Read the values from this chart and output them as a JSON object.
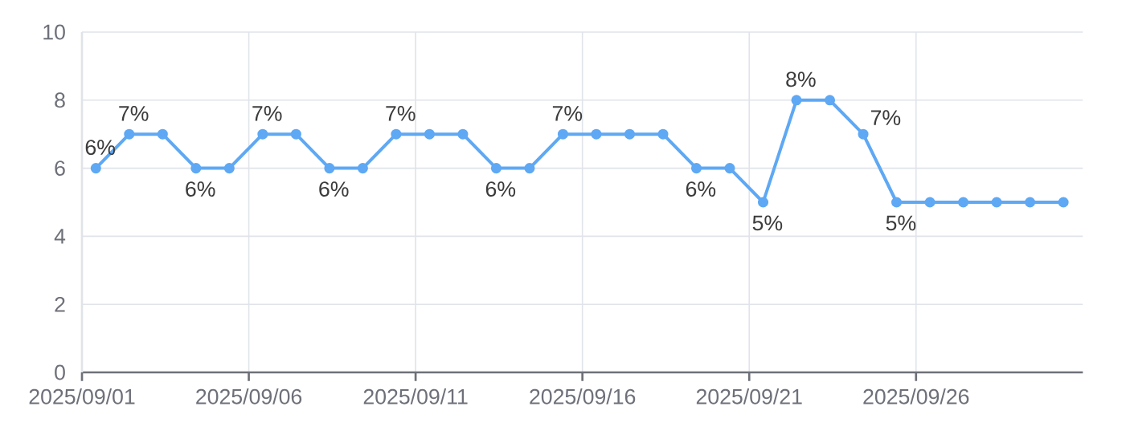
{
  "chart_data": {
    "type": "line",
    "x": [
      "2025-09-01T10:00",
      "2025-09-02T10:00",
      "2025-09-03T10:00",
      "2025-09-04T10:00",
      "2025-09-05T10:00",
      "2025-09-06T10:00",
      "2025-09-07T10:00",
      "2025-09-08T10:00",
      "2025-09-09T10:00",
      "2025-09-10T10:00",
      "2025-09-11T10:00",
      "2025-09-12T10:00",
      "2025-09-13T10:00",
      "2025-09-14T10:00",
      "2025-09-15T10:00",
      "2025-09-16T10:00",
      "2025-09-17T10:00",
      "2025-09-18T10:00",
      "2025-09-19T10:00",
      "2025-09-20T10:00",
      "2025-09-21T10:00",
      "2025-09-22T10:00",
      "2025-09-23T10:00",
      "2025-09-24T10:00",
      "2025-09-25T10:00",
      "2025-09-26T10:00",
      "2025-09-27T10:00",
      "2025-09-28T10:00",
      "2025-09-29T10:00",
      "2025-09-30T10:00"
    ],
    "series": [
      {
        "color": "#5ea8f4",
        "values": [
          6,
          7,
          7,
          6,
          6,
          7,
          7,
          6,
          6,
          7,
          7,
          7,
          6,
          6,
          7,
          7,
          7,
          7,
          6,
          6,
          5,
          8,
          8,
          7,
          5,
          5,
          5,
          5,
          5,
          5
        ],
        "value_labels": [
          "6%",
          "7%",
          null,
          "6%",
          null,
          "7%",
          null,
          "6%",
          null,
          "7%",
          null,
          null,
          "6%",
          null,
          "7%",
          null,
          null,
          null,
          "6%",
          null,
          "5%",
          "8%",
          null,
          "7%",
          "5%",
          null,
          null,
          null,
          null,
          null
        ]
      }
    ],
    "xlim": [
      "2025-09-01",
      "2025-10-01"
    ],
    "xticks": [
      {
        "value": "2025-09-01",
        "label": "2025/09/01"
      },
      {
        "value": "2025-09-06",
        "label": "2025/09/06"
      },
      {
        "value": "2025-09-11",
        "label": "2025/09/11"
      },
      {
        "value": "2025-09-16",
        "label": "2025/09/16"
      },
      {
        "value": "2025-09-21",
        "label": "2025/09/21"
      },
      {
        "value": "2025-09-26",
        "label": "2025/09/26"
      }
    ],
    "ylim": [
      0,
      10
    ],
    "yticks": [
      0,
      2,
      4,
      6,
      8,
      10
    ],
    "grid": true,
    "marker": "circle",
    "line_style": "solid"
  }
}
